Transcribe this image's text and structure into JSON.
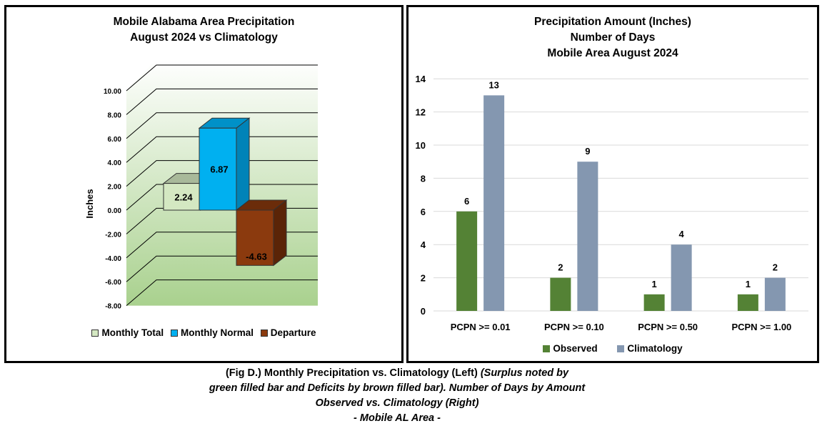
{
  "colors": {
    "monthly_total": "#d4e8c2",
    "monthly_normal": "#00b0f0",
    "departure": "#8b3a0e",
    "observed": "#548235",
    "climatology": "#8497b0",
    "plot_gradient_top": "#ffffff",
    "plot_gradient_bottom": "#a9d18e"
  },
  "left_chart": {
    "title_line1": "Mobile Alabama Area Precipitation",
    "title_line2": "August 2024 vs Climatology",
    "legend": [
      "Monthly Total",
      "Monthly Normal",
      "Departure"
    ]
  },
  "right_chart": {
    "title_line1": "Precipitation Amount (Inches)",
    "title_line2": "Number of Days",
    "title_line3": "Mobile Area August 2024",
    "legend": [
      "Observed",
      "Climatology"
    ]
  },
  "chart_data": [
    {
      "type": "bar",
      "title": "Mobile Alabama Area Precipitation August 2024 vs Climatology",
      "ylabel": "Inches",
      "ylim": [
        -8,
        10
      ],
      "yticks": [
        "10.00",
        "8.00",
        "6.00",
        "4.00",
        "2.00",
        "0.00",
        "-2.00",
        "-4.00",
        "-6.00",
        "-8.00"
      ],
      "categories": [
        "Monthly Total",
        "Monthly Normal",
        "Departure"
      ],
      "values": [
        2.24,
        6.87,
        -4.63
      ],
      "labels": [
        "2.24",
        "6.87",
        "-4.63"
      ],
      "grid": true,
      "legend_position": "bottom"
    },
    {
      "type": "bar",
      "title": "Precipitation Amount (Inches) Number of Days Mobile Area August 2024",
      "categories": [
        "PCPN >= 0.01",
        "PCPN >= 0.10",
        "PCPN >= 0.50",
        "PCPN >= 1.00"
      ],
      "series": [
        {
          "name": "Observed",
          "values": [
            6,
            2,
            1,
            1
          ]
        },
        {
          "name": "Climatology",
          "values": [
            13,
            9,
            4,
            2
          ]
        }
      ],
      "ylim": [
        0,
        14
      ],
      "yticks": [
        "14",
        "12",
        "10",
        "8",
        "6",
        "4",
        "2",
        "0"
      ],
      "grid": true,
      "legend_position": "bottom"
    }
  ],
  "caption": {
    "line1_main": "(Fig D.) Monthly Precipitation vs. Climatology (Left)",
    "line1_italic": "(Surplus noted by",
    "line2": "green filled bar and Deficits by brown filled bar). Number of Days by Amount",
    "line3": "Observed vs. Climatology (Right)",
    "line4": "- Mobile AL Area -"
  }
}
